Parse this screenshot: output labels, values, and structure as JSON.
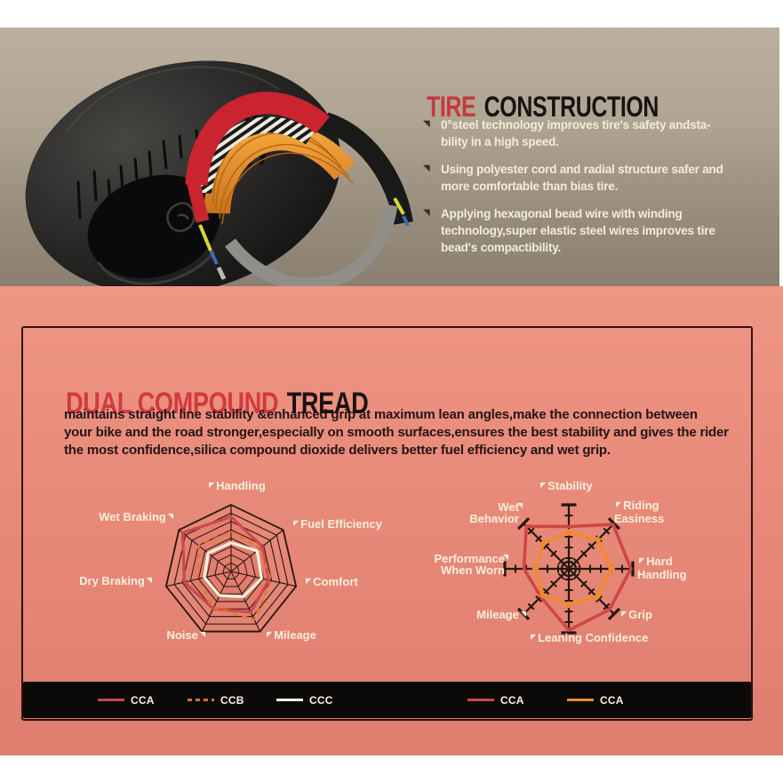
{
  "construction": {
    "title_accent": "TIRE",
    "title_rest": "CONSTRUCTION",
    "bullets": [
      "0°steel technology improves tire's safety andsta-bility in a high speed.",
      "Using polyester cord and radial structure safer and more comfortable than bias tire.",
      "Applying hexagonal bead wire with winding technology,super elastic steel wires improves tire bead's compactibility."
    ]
  },
  "tread": {
    "title_accent": "DUAL COMPOUND",
    "title_rest": "TREAD",
    "paragraph": "maintains straight line stability &enhanced grip at maximum lean angles,make the connection between your bike and the road stronger,especially on smooth surfaces,ensures the best stability and gives the rider the most confidence,silica compound dioxide delivers better fuel efficiency and wet grip."
  },
  "legend": {
    "items": [
      {
        "label": "CCA",
        "color": "#c4494e",
        "style": "solid"
      },
      {
        "label": "CCB",
        "color": "#d8742f",
        "style": "dashed"
      },
      {
        "label": "CCC",
        "color": "#fdf4e2",
        "style": "solid"
      },
      {
        "label": "CCA",
        "color": "#cf4947",
        "style": "solid"
      },
      {
        "label": "CCA",
        "color": "#ee8c33",
        "style": "solid"
      }
    ]
  },
  "colors": {
    "accent_red": "#c5393d",
    "heading_black": "#171310",
    "top_bg": "#a99e8d",
    "bottom_bg": "#e88a79",
    "card_border": "#2e1113",
    "label_cream": "#f9efdb",
    "grid_dark": "#241711",
    "legend_bar": "#0c0a08"
  },
  "chart_data": [
    {
      "type": "radar",
      "grid": "web",
      "rings": 8,
      "scale": [
        0,
        1
      ],
      "legend_position": "bottom",
      "categories": [
        "Handling",
        "Fuel Efficiency",
        "Comfort",
        "Mileage",
        "Noise",
        "Dry Braking",
        "Wet Braking"
      ],
      "series": [
        {
          "name": "CCA",
          "color": "#cc4a4b",
          "style": "solid",
          "fill": "rgba(204,74,75,0.12)",
          "values": [
            0.82,
            0.6,
            0.58,
            0.68,
            0.62,
            0.72,
            0.93
          ]
        },
        {
          "name": "CCB",
          "color": "#e2762f",
          "style": "dashed",
          "values": [
            0.6,
            0.55,
            0.62,
            0.8,
            0.6,
            0.52,
            0.62
          ]
        },
        {
          "name": "CCC",
          "color": "#fdf2df",
          "style": "solid",
          "values": [
            0.43,
            0.5,
            0.47,
            0.42,
            0.4,
            0.41,
            0.44
          ]
        }
      ]
    },
    {
      "type": "radar",
      "grid": "rays",
      "scale": [
        0,
        1
      ],
      "legend_position": "bottom",
      "categories": [
        "Stability",
        "Riding Easiness",
        "Hard Handling",
        "Grip",
        "Leaning Confidence",
        "Mileage",
        "Performance When Worn",
        "Wet Behavior"
      ],
      "series": [
        {
          "name": "CCA",
          "color": "#d04543",
          "style": "solid",
          "values": [
            0.66,
            0.98,
            0.97,
            0.9,
            0.96,
            0.62,
            0.7,
            0.94
          ]
        },
        {
          "name": "CCA",
          "color": "#f08a2e",
          "style": "solid",
          "values": [
            0.57,
            0.64,
            0.67,
            0.62,
            0.56,
            0.58,
            0.52,
            0.56
          ]
        }
      ]
    }
  ]
}
